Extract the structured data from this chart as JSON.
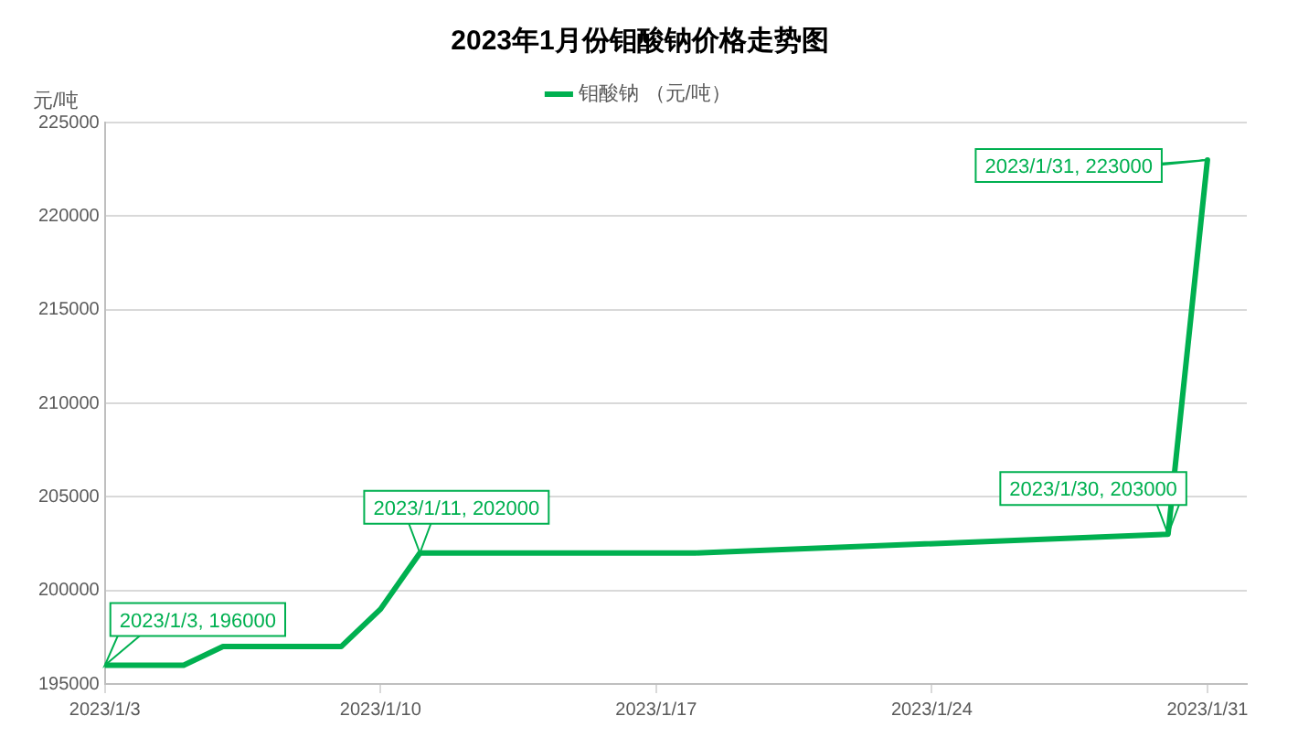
{
  "chart_data": {
    "type": "line",
    "title": "2023年1月份钼酸钠价格走势图",
    "ylabel": "元/吨",
    "x": [
      "2023-01-03",
      "2023-01-04",
      "2023-01-05",
      "2023-01-06",
      "2023-01-09",
      "2023-01-10",
      "2023-01-11",
      "2023-01-12",
      "2023-01-13",
      "2023-01-16",
      "2023-01-17",
      "2023-01-18",
      "2023-01-30",
      "2023-01-31"
    ],
    "series": [
      {
        "name": "钼酸钠 （元/吨）",
        "color": "#00b050",
        "values": [
          196000,
          196000,
          196000,
          197000,
          197000,
          199000,
          202000,
          202000,
          202000,
          202000,
          202000,
          202000,
          203000,
          223000
        ]
      }
    ],
    "xlim": [
      "2023-01-03",
      "2023-02-01"
    ],
    "xticks": [
      {
        "value": "2023-01-03",
        "label": "2023/1/3"
      },
      {
        "value": "2023-01-10",
        "label": "2023/1/10"
      },
      {
        "value": "2023-01-17",
        "label": "2023/1/17"
      },
      {
        "value": "2023-01-24",
        "label": "2023/1/24"
      },
      {
        "value": "2023-01-31",
        "label": "2023/1/31"
      }
    ],
    "ylim": [
      195000,
      225000
    ],
    "yticks": [
      195000,
      200000,
      205000,
      210000,
      215000,
      220000,
      225000
    ],
    "grid": "y",
    "legend": "top",
    "marker": "none",
    "line_style": "solid",
    "annotations": [
      {
        "text": "2023/1/3, 196000",
        "x": "2023-01-03",
        "y": 196000
      },
      {
        "text": "2023/1/11, 202000",
        "x": "2023-01-11",
        "y": 202000
      },
      {
        "text": "2023/1/30, 203000",
        "x": "2023-01-30",
        "y": 203000
      },
      {
        "text": "2023/1/31, 223000",
        "x": "2023-01-31",
        "y": 223000
      }
    ]
  }
}
